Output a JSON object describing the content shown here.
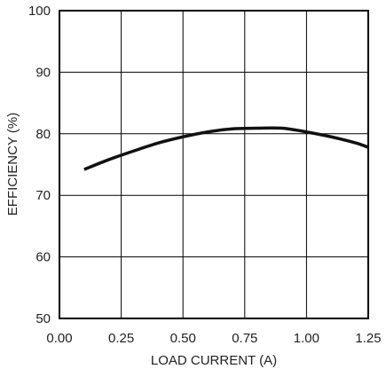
{
  "chart_data": {
    "type": "line",
    "title": "",
    "xlabel": "LOAD CURRENT (A)",
    "ylabel": "EFFICIENCY (%)",
    "xlim": [
      0,
      1.25
    ],
    "ylim": [
      50,
      100
    ],
    "x_ticks": [
      "0.00",
      "0.25",
      "0.50",
      "0.75",
      "1.00",
      "1.25"
    ],
    "y_ticks": [
      "50",
      "60",
      "70",
      "80",
      "90",
      "100"
    ],
    "grid": true,
    "series": [
      {
        "x": [
          0.1,
          0.2,
          0.3,
          0.4,
          0.5,
          0.6,
          0.7,
          0.8,
          0.9,
          1.0,
          1.1,
          1.2,
          1.25
        ],
        "values": [
          74.2,
          75.8,
          77.2,
          78.5,
          79.5,
          80.3,
          80.8,
          80.9,
          80.9,
          80.3,
          79.5,
          78.5,
          77.8
        ]
      }
    ]
  },
  "colors": {
    "line": "#111111",
    "grid": "#000000",
    "frame": "#000000"
  }
}
